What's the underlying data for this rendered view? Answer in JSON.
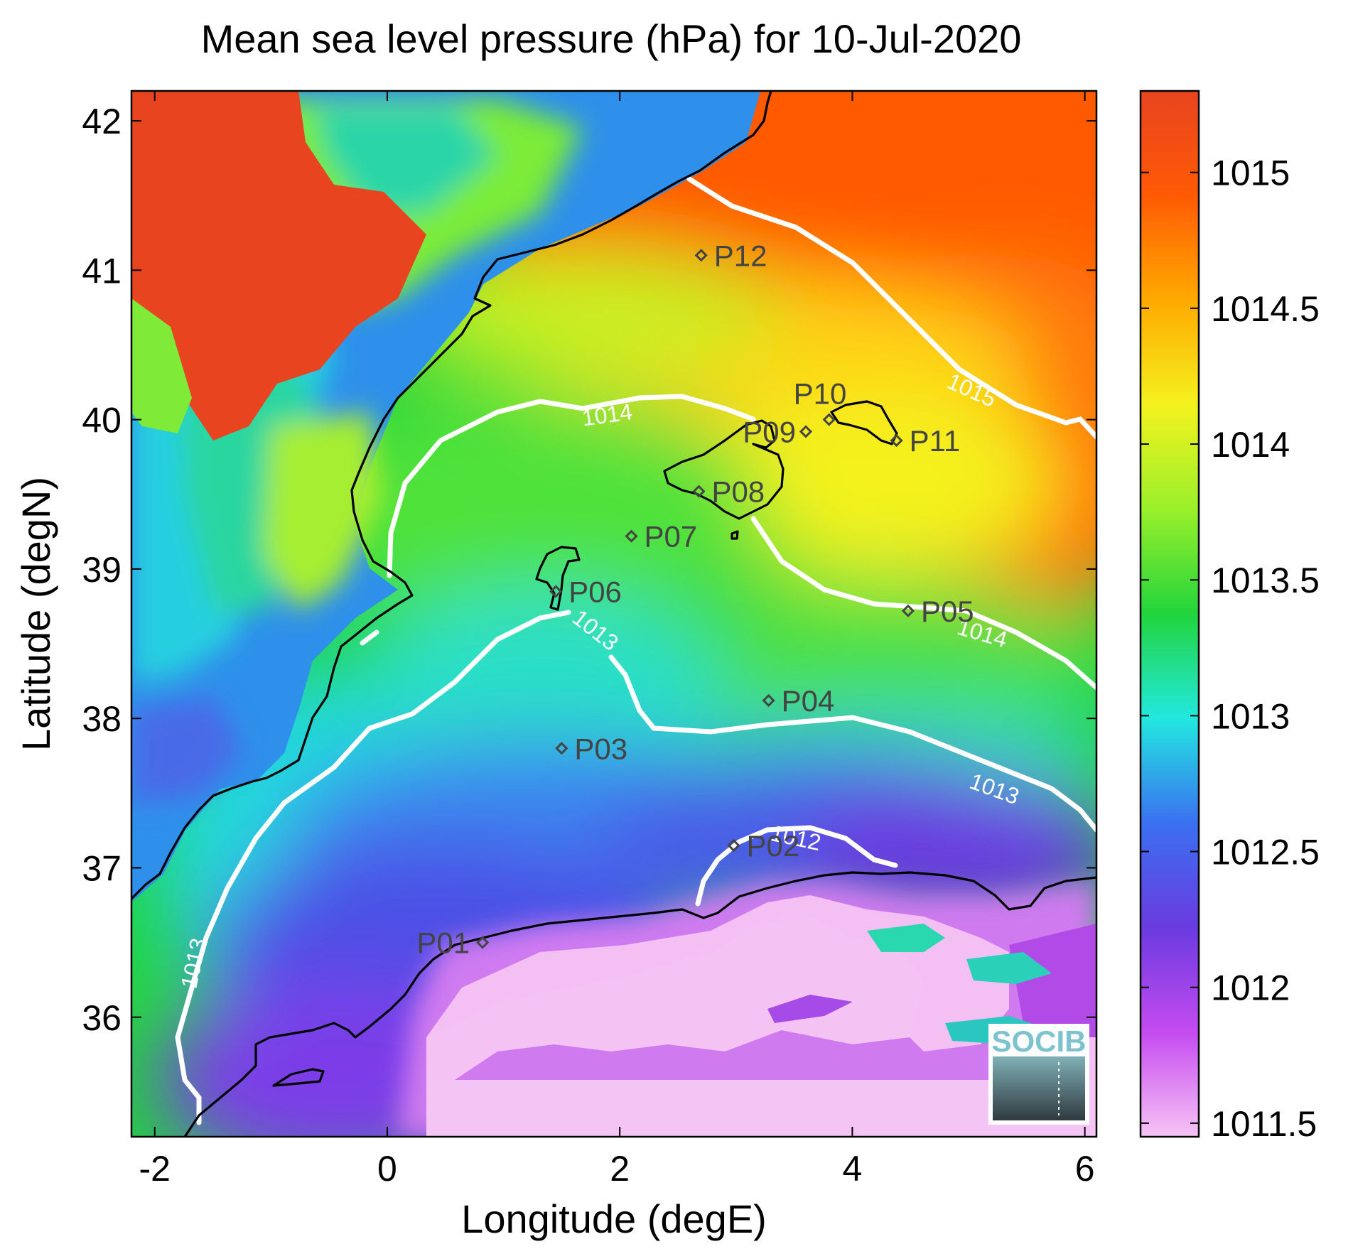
{
  "title": "Mean sea level pressure (hPa) for 10-Jul-2020",
  "xlabel": "Longitude (degE)",
  "ylabel": "Latitude (degN)",
  "xlim": [
    -2.2,
    6.1
  ],
  "ylim": [
    35.2,
    42.2
  ],
  "x_ticks": [
    {
      "value": -2,
      "label": "-2"
    },
    {
      "value": 0,
      "label": "0"
    },
    {
      "value": 2,
      "label": "2"
    },
    {
      "value": 4,
      "label": "4"
    },
    {
      "value": 6,
      "label": "6"
    }
  ],
  "y_ticks": [
    {
      "value": 36,
      "label": "36"
    },
    {
      "value": 37,
      "label": "37"
    },
    {
      "value": 38,
      "label": "38"
    },
    {
      "value": 39,
      "label": "39"
    },
    {
      "value": 40,
      "label": "40"
    },
    {
      "value": 41,
      "label": "41"
    },
    {
      "value": 42,
      "label": "42"
    }
  ],
  "colorbar": {
    "range": [
      1011.45,
      1015.3
    ],
    "ticks": [
      {
        "value": 1015,
        "label": "1015"
      },
      {
        "value": 1014.5,
        "label": "1014.5"
      },
      {
        "value": 1014,
        "label": "1014"
      },
      {
        "value": 1013.5,
        "label": "1013.5"
      },
      {
        "value": 1013,
        "label": "1013"
      },
      {
        "value": 1012.5,
        "label": "1012.5"
      },
      {
        "value": 1012,
        "label": "1012"
      },
      {
        "value": 1011.5,
        "label": "1011.5"
      }
    ],
    "colors": [
      "#f7c4f5",
      "#c44bf0",
      "#6a3be0",
      "#3a70f0",
      "#22e8e0",
      "#22d43c",
      "#9af02a",
      "#f4f21e",
      "#ffa900",
      "#ff5a05",
      "#e84420"
    ]
  },
  "stations": [
    {
      "label": "P01",
      "lon": 0.82,
      "lat": 36.5
    },
    {
      "label": "P02",
      "lon": 2.98,
      "lat": 37.15
    },
    {
      "label": "P03",
      "lon": 1.5,
      "lat": 37.8
    },
    {
      "label": "P04",
      "lon": 3.28,
      "lat": 38.12
    },
    {
      "label": "P05",
      "lon": 4.48,
      "lat": 38.72
    },
    {
      "label": "P06",
      "lon": 1.45,
      "lat": 38.85
    },
    {
      "label": "P07",
      "lon": 2.1,
      "lat": 39.22
    },
    {
      "label": "P08",
      "lon": 2.68,
      "lat": 39.52
    },
    {
      "label": "P09",
      "lon": 3.6,
      "lat": 39.92
    },
    {
      "label": "P10",
      "lon": 3.8,
      "lat": 40.0
    },
    {
      "label": "P11",
      "lon": 4.38,
      "lat": 39.86
    },
    {
      "label": "P12",
      "lon": 2.7,
      "lat": 41.1
    }
  ],
  "contours": [
    {
      "level": 1015,
      "label": "1015",
      "label_lon": 5.0,
      "label_lat": 40.15,
      "label_angle": 24
    },
    {
      "level": 1014,
      "label": "1014",
      "label_lon": 1.9,
      "label_lat": 39.98,
      "label_angle": -8
    },
    {
      "level": 1014,
      "label": "1014",
      "label_lon": 5.1,
      "label_lat": 38.52,
      "label_angle": 16
    },
    {
      "level": 1013,
      "label": "1013",
      "label_lon": 1.75,
      "label_lat": 38.55,
      "label_angle": 38
    },
    {
      "level": 1013,
      "label": "1013",
      "label_lon": 5.2,
      "label_lat": 37.48,
      "label_angle": 20
    },
    {
      "level": 1013,
      "label": "1013",
      "label_lon": -1.6,
      "label_lat": 36.35,
      "label_angle": -78
    },
    {
      "level": 1012,
      "label": "1012",
      "label_lon": 3.5,
      "label_lat": 37.15,
      "label_angle": 12
    }
  ],
  "logo_text": "SOCIB"
}
